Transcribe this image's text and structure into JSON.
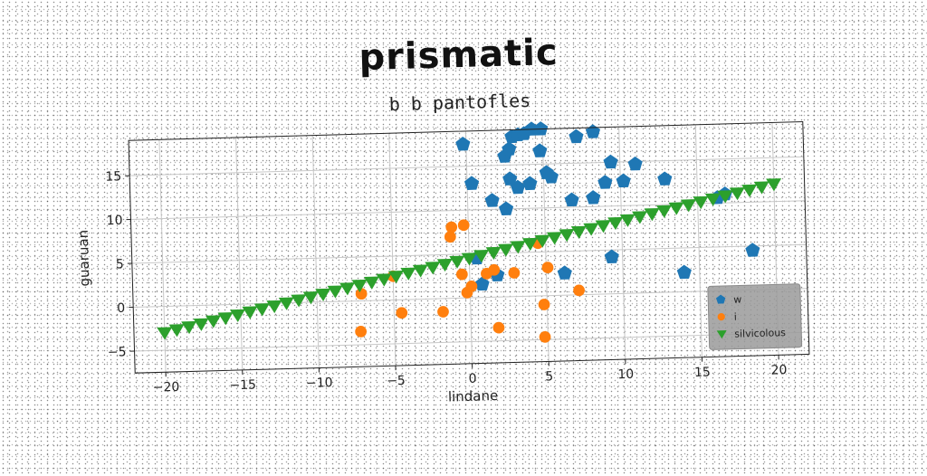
{
  "chart_data": {
    "type": "scatter",
    "title": "prismatic",
    "subtitle": "b b pantofles",
    "xlabel": "lindane",
    "ylabel": "guaruan",
    "xlim": [
      -22,
      22
    ],
    "ylim": [
      -7.5,
      19
    ],
    "xticks": [
      -20,
      -15,
      -10,
      -5,
      0,
      5,
      10,
      15,
      20
    ],
    "yticks": [
      -5,
      0,
      5,
      10,
      15
    ],
    "xtick_labels": [
      "−20",
      "−15",
      "−10",
      "−5",
      "0",
      "5",
      "10",
      "15",
      "20"
    ],
    "ytick_labels": [
      "−5",
      "0",
      "5",
      "10",
      "15"
    ],
    "grid": true,
    "legend_position": "lower-right",
    "series": [
      {
        "name": "w",
        "color": "#1f77b4",
        "marker": "pentagon",
        "points": [
          [
            -0.2,
            17.5
          ],
          [
            0.3,
            13.0
          ],
          [
            1.6,
            11.0
          ],
          [
            2.5,
            10.0
          ],
          [
            2.5,
            16.0
          ],
          [
            2.8,
            16.8
          ],
          [
            3.0,
            18.2
          ],
          [
            3.4,
            18.4
          ],
          [
            3.8,
            18.5
          ],
          [
            4.3,
            19.0
          ],
          [
            4.9,
            19.0
          ],
          [
            4.8,
            16.5
          ],
          [
            2.8,
            13.4
          ],
          [
            3.3,
            12.4
          ],
          [
            4.1,
            12.8
          ],
          [
            5.2,
            14.0
          ],
          [
            5.5,
            13.5
          ],
          [
            6.8,
            10.8
          ],
          [
            7.2,
            18.0
          ],
          [
            8.3,
            18.5
          ],
          [
            8.2,
            11.0
          ],
          [
            9.0,
            12.7
          ],
          [
            9.4,
            15.0
          ],
          [
            10.2,
            12.8
          ],
          [
            11.0,
            14.7
          ],
          [
            12.9,
            12.9
          ],
          [
            16.3,
            10.6
          ],
          [
            16.8,
            11.0
          ],
          [
            18.5,
            4.5
          ],
          [
            14.0,
            2.2
          ],
          [
            9.3,
            4.2
          ],
          [
            6.2,
            2.5
          ],
          [
            0.5,
            4.5
          ],
          [
            1.8,
            2.5
          ],
          [
            0.8,
            1.5
          ]
        ]
      },
      {
        "name": "i",
        "color": "#ff7f0e",
        "marker": "circle",
        "points": [
          [
            -7.2,
            -3.5
          ],
          [
            -7.1,
            0.8
          ],
          [
            -5.0,
            2.7
          ],
          [
            -4.5,
            -1.5
          ],
          [
            -1.8,
            -1.5
          ],
          [
            -1.2,
            7.0
          ],
          [
            -1.1,
            8.1
          ],
          [
            -0.3,
            8.3
          ],
          [
            -0.5,
            2.7
          ],
          [
            -0.2,
            0.6
          ],
          [
            0.1,
            1.3
          ],
          [
            1.1,
            2.7
          ],
          [
            1.6,
            3.1
          ],
          [
            1.8,
            -3.5
          ],
          [
            2.9,
            2.7
          ],
          [
            4.5,
            6.0
          ],
          [
            4.8,
            -1.0
          ],
          [
            5.1,
            3.2
          ],
          [
            4.8,
            -4.7
          ],
          [
            7.1,
            0.5
          ]
        ]
      },
      {
        "name": "silvicolous",
        "color": "#2ca02c",
        "marker": "triangle-down",
        "points": [
          [
            -20.0,
            -3.0
          ],
          [
            -19.2,
            -2.7
          ],
          [
            -18.4,
            -2.4
          ],
          [
            -17.6,
            -2.1
          ],
          [
            -16.8,
            -1.8
          ],
          [
            -16.0,
            -1.5
          ],
          [
            -15.2,
            -1.2
          ],
          [
            -14.4,
            -0.9
          ],
          [
            -13.6,
            -0.6
          ],
          [
            -12.8,
            -0.3
          ],
          [
            -12.0,
            0.0
          ],
          [
            -11.2,
            0.3
          ],
          [
            -10.4,
            0.6
          ],
          [
            -9.6,
            0.9
          ],
          [
            -8.8,
            1.2
          ],
          [
            -8.0,
            1.5
          ],
          [
            -7.2,
            1.8
          ],
          [
            -6.4,
            2.1
          ],
          [
            -5.6,
            2.4
          ],
          [
            -4.8,
            2.7
          ],
          [
            -4.0,
            3.0
          ],
          [
            -3.2,
            3.3
          ],
          [
            -2.4,
            3.6
          ],
          [
            -1.6,
            3.9
          ],
          [
            -0.8,
            4.2
          ],
          [
            0.0,
            4.5
          ],
          [
            0.8,
            4.8
          ],
          [
            1.6,
            5.1
          ],
          [
            2.4,
            5.4
          ],
          [
            3.2,
            5.7
          ],
          [
            4.0,
            6.0
          ],
          [
            4.8,
            6.3
          ],
          [
            5.6,
            6.6
          ],
          [
            6.4,
            6.9
          ],
          [
            7.2,
            7.2
          ],
          [
            8.0,
            7.5
          ],
          [
            8.8,
            7.8
          ],
          [
            9.6,
            8.1
          ],
          [
            10.4,
            8.4
          ],
          [
            11.2,
            8.7
          ],
          [
            12.0,
            9.0
          ],
          [
            12.8,
            9.3
          ],
          [
            13.6,
            9.6
          ],
          [
            14.4,
            9.9
          ],
          [
            15.2,
            10.2
          ],
          [
            16.0,
            10.5
          ],
          [
            16.8,
            10.8
          ],
          [
            17.6,
            11.1
          ],
          [
            18.4,
            11.4
          ],
          [
            19.2,
            11.7
          ],
          [
            20.0,
            12.0
          ]
        ]
      }
    ]
  }
}
